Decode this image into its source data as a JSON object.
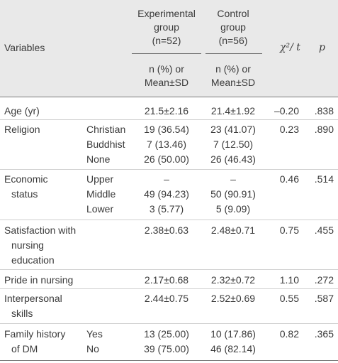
{
  "header": {
    "variables": "Variables",
    "exp_line1": "Experimental",
    "exp_line2": "group",
    "exp_line3": "(n=52)",
    "ctl_line1": "Control",
    "ctl_line2": "group",
    "ctl_line3": "(n=56)",
    "chi": "χ²/ t",
    "p": "p",
    "sub_line1": "n (%) or",
    "sub_line2": "Mean±SD"
  },
  "rows": {
    "age": {
      "label": "Age (yr)",
      "exp": "21.5±2.16",
      "ctl": "21.4±1.92",
      "stat": "–0.20",
      "p": ".838"
    },
    "religion": {
      "label": "Religion",
      "subs": [
        "Christian",
        "Buddhist",
        "None"
      ],
      "exp": [
        "19 (36.54)",
        "7 (13.46)",
        "26 (50.00)"
      ],
      "ctl": [
        "23 (41.07)",
        "7 (12.50)",
        "26 (46.43)"
      ],
      "stat": "0.23",
      "p": ".890"
    },
    "economic": {
      "label1": "Economic",
      "label2": "status",
      "subs": [
        "Upper",
        "Middle",
        "Lower"
      ],
      "exp": [
        "–",
        "49 (94.23)",
        "3 (5.77)"
      ],
      "ctl": [
        "–",
        "50 (90.91)",
        "5 (9.09)"
      ],
      "stat": "0.46",
      "p": ".514"
    },
    "satisfaction": {
      "label1": "Satisfaction with",
      "label2": "nursing",
      "label3": "education",
      "exp": "2.38±0.63",
      "ctl": "2.48±0.71",
      "stat": "0.75",
      "p": ".455"
    },
    "pride": {
      "label": "Pride in nursing",
      "exp": "2.17±0.68",
      "ctl": "2.32±0.72",
      "stat": "1.10",
      "p": ".272"
    },
    "interpersonal": {
      "label1": "Interpersonal",
      "label2": "skills",
      "exp": "2.44±0.75",
      "ctl": "2.52±0.69",
      "stat": "0.55",
      "p": ".587"
    },
    "family": {
      "label1": "Family history",
      "label2": "of DM",
      "subs": [
        "Yes",
        "No"
      ],
      "exp": [
        "13 (25.00)",
        "39 (75.00)"
      ],
      "ctl": [
        "10 (17.86)",
        "46 (82.14)"
      ],
      "stat": "0.82",
      "p": ".365"
    }
  }
}
